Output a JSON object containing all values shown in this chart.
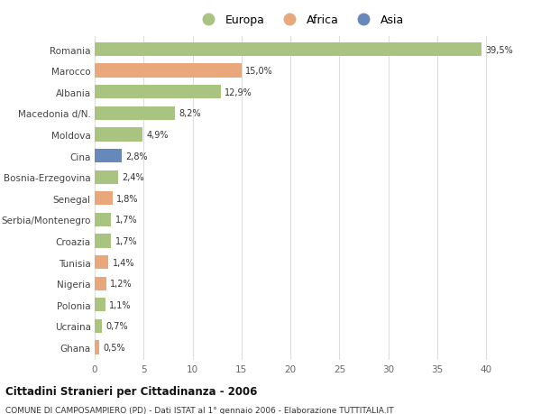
{
  "countries": [
    "Romania",
    "Marocco",
    "Albania",
    "Macedonia d/N.",
    "Moldova",
    "Cina",
    "Bosnia-Erzegovina",
    "Senegal",
    "Serbia/Montenegro",
    "Croazia",
    "Tunisia",
    "Nigeria",
    "Polonia",
    "Ucraina",
    "Ghana"
  ],
  "values": [
    39.5,
    15.0,
    12.9,
    8.2,
    4.9,
    2.8,
    2.4,
    1.8,
    1.7,
    1.7,
    1.4,
    1.2,
    1.1,
    0.7,
    0.5
  ],
  "labels": [
    "39,5%",
    "15,0%",
    "12,9%",
    "8,2%",
    "4,9%",
    "2,8%",
    "2,4%",
    "1,8%",
    "1,7%",
    "1,7%",
    "1,4%",
    "1,2%",
    "1,1%",
    "0,7%",
    "0,5%"
  ],
  "continents": [
    "Europa",
    "Africa",
    "Europa",
    "Europa",
    "Europa",
    "Asia",
    "Europa",
    "Africa",
    "Europa",
    "Europa",
    "Africa",
    "Africa",
    "Europa",
    "Europa",
    "Africa"
  ],
  "colors": {
    "Europa": "#a8c480",
    "Africa": "#e8a87c",
    "Asia": "#6688bb"
  },
  "title": "Cittadini Stranieri per Cittadinanza - 2006",
  "subtitle": "COMUNE DI CAMPOSAMPIERO (PD) - Dati ISTAT al 1° gennaio 2006 - Elaborazione TUTTITALIA.IT",
  "xlim": [
    0,
    42
  ],
  "xticks": [
    0,
    5,
    10,
    15,
    20,
    25,
    30,
    35,
    40
  ],
  "background_color": "#ffffff",
  "plot_background": "#ffffff",
  "grid_color": "#dddddd"
}
